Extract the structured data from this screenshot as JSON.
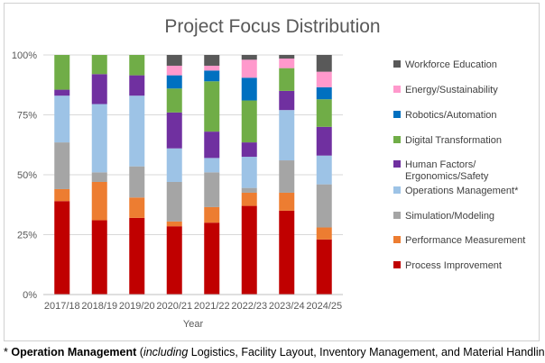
{
  "chart_data": {
    "type": "bar",
    "stacked": true,
    "normalized": true,
    "title": "Project Focus Distribution",
    "xlabel": "Year",
    "ylabel": "",
    "ylim": [
      0,
      100
    ],
    "yticks": [
      "0%",
      "25%",
      "50%",
      "75%",
      "100%"
    ],
    "grid": true,
    "legend_position": "right",
    "categories": [
      "2017/18",
      "2018/19",
      "2019/20",
      "2020/21",
      "2021/22",
      "2022/23",
      "2023/24",
      "2024/25"
    ],
    "series": [
      {
        "name": "Process Improvement",
        "color": "#C00000",
        "values": [
          39,
          31,
          32,
          28.5,
          30,
          37,
          35,
          23
        ]
      },
      {
        "name": "Performance Measurement",
        "color": "#ED7D31",
        "values": [
          5,
          16,
          8.5,
          2,
          6.5,
          5.5,
          7.5,
          5
        ]
      },
      {
        "name": "Simulation/Modeling",
        "color": "#A5A5A5",
        "values": [
          19.5,
          4,
          13,
          16.5,
          14.5,
          2,
          13.5,
          18
        ]
      },
      {
        "name": "Operations Management*",
        "color": "#9DC3E6",
        "values": [
          19.5,
          28.5,
          29.5,
          14,
          6,
          13,
          21,
          12
        ]
      },
      {
        "name": "Human Factors/ Ergonomics/Safety",
        "color": "#7030A0",
        "values": [
          2.5,
          12.5,
          8.5,
          15,
          11,
          6,
          8,
          12
        ]
      },
      {
        "name": "Digital Transformation",
        "color": "#70AD47",
        "values": [
          14.5,
          8,
          8.5,
          10,
          21,
          17.5,
          9.5,
          11.5
        ]
      },
      {
        "name": "Robotics/Automation",
        "color": "#0070C0",
        "values": [
          0,
          0,
          0,
          5.5,
          4.5,
          9.5,
          0,
          5
        ]
      },
      {
        "name": "Energy/Sustainability",
        "color": "#FF99CC",
        "values": [
          0,
          0,
          0,
          4,
          2,
          7.5,
          4,
          6.5
        ]
      },
      {
        "name": "Workforce Education",
        "color": "#595959",
        "values": [
          0,
          0,
          0,
          4.5,
          4.5,
          2,
          1.5,
          7
        ]
      }
    ]
  },
  "footnote": {
    "marker": "*",
    "bold": "Operation Management",
    "open": "(",
    "italic": "including",
    "rest": "Logistics, Facility Layout, Inventory Management, and Material Handling)"
  }
}
